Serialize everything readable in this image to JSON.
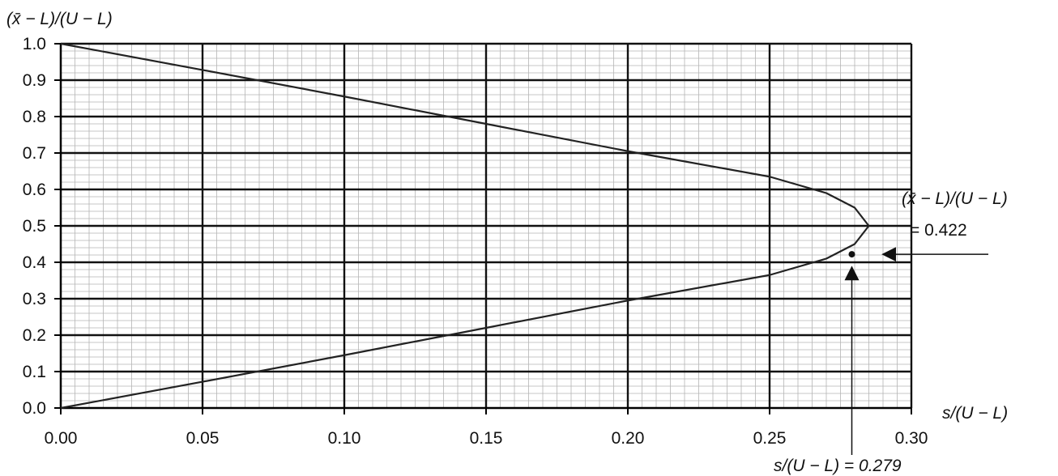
{
  "chart_data": {
    "type": "line",
    "title": "",
    "ylabel": "(x̄ − L)/(U − L)",
    "xlabel": "s/(U − L)",
    "xlim": [
      0,
      0.3
    ],
    "ylim": [
      0,
      1.0
    ],
    "x_ticks": [
      "0.00",
      "0.05",
      "0.10",
      "0.15",
      "0.20",
      "0.25",
      "0.30"
    ],
    "y_ticks": [
      "0.0",
      "0.1",
      "0.2",
      "0.3",
      "0.4",
      "0.5",
      "0.6",
      "0.7",
      "0.8",
      "0.9",
      "1.0"
    ],
    "grid": {
      "major": true,
      "minor": true,
      "minor_x_step": 0.005,
      "minor_y_step": 0.02
    },
    "series": [
      {
        "x": [
          0.0,
          0.05,
          0.1,
          0.15,
          0.2,
          0.25,
          0.27,
          0.28,
          0.285,
          0.28,
          0.27,
          0.25,
          0.2,
          0.15,
          0.1,
          0.05,
          0.0
        ],
        "y": [
          1.0,
          0.928,
          0.855,
          0.78,
          0.705,
          0.635,
          0.59,
          0.55,
          0.5,
          0.45,
          0.41,
          0.365,
          0.295,
          0.22,
          0.145,
          0.072,
          0.0
        ]
      }
    ],
    "point": {
      "x": 0.279,
      "y": 0.422
    },
    "annotations": {
      "y_label_line1": "(x̄ − L)/(U − L)",
      "y_label_line2": "= 0.422",
      "x_label": "s/(U − L) = 0.279"
    },
    "colors": {
      "curve": "#222222",
      "major_grid": "#111111",
      "minor_grid": "#b4b4b4",
      "axis": "#000000"
    }
  }
}
